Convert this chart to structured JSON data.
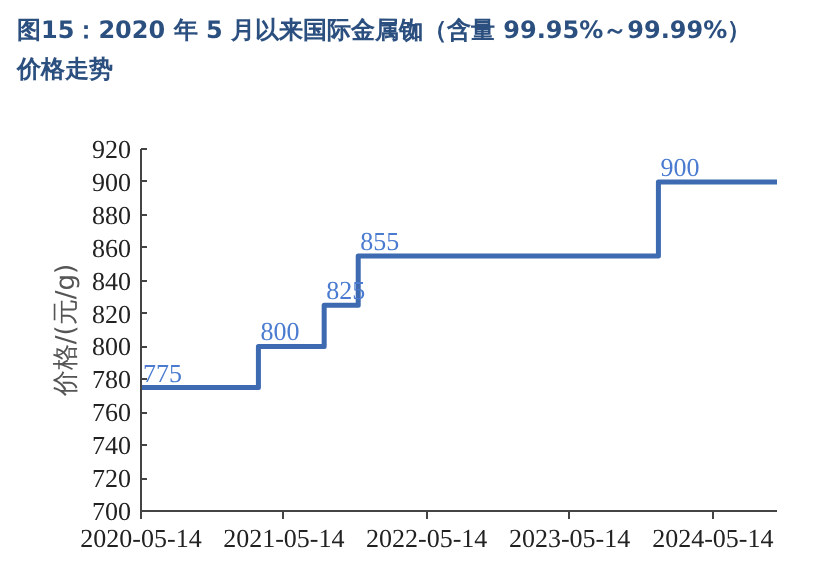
{
  "chart_data": {
    "type": "step",
    "title": "图15：2020 年 5 月以来国际金属铷（含量 99.95%～99.99%）价格走势",
    "ylabel": "价格/(元/g)",
    "x": [
      "2020-05-14",
      "2021-03-10",
      "2021-08-25",
      "2021-11-20",
      "2023-12-27",
      "2024-10-25"
    ],
    "series": [
      {
        "color": "#3d6ab0",
        "values": [
          775,
          800,
          825,
          855,
          900,
          900
        ],
        "value_labels": [
          "775",
          "800",
          "825",
          "855",
          "900",
          null
        ]
      }
    ],
    "xlim": [
      "2020-05-14",
      "2024-10-25"
    ],
    "xticks": [
      "2020-05-14",
      "2021-05-14",
      "2022-05-14",
      "2023-05-14",
      "2024-05-14"
    ],
    "ylim": [
      700,
      920
    ],
    "yticks": [
      700,
      720,
      740,
      760,
      780,
      800,
      820,
      840,
      860,
      880,
      900,
      920
    ],
    "grid": false
  }
}
